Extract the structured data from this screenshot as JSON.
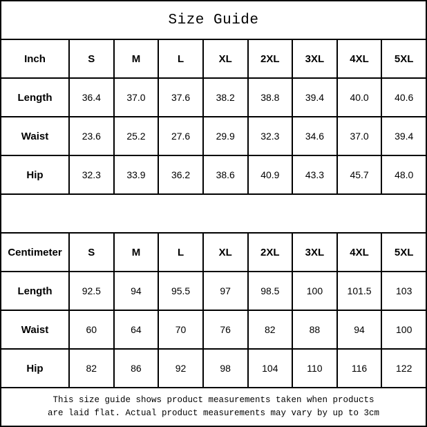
{
  "title": "Size Guide",
  "colors": {
    "border": "#000000",
    "text": "#000000",
    "background": "#ffffff"
  },
  "inch_table": {
    "header": [
      "Inch",
      "S",
      "M",
      "L",
      "XL",
      "2XL",
      "3XL",
      "4XL",
      "5XL"
    ],
    "rows": [
      {
        "label": "Length",
        "values": [
          "36.4",
          "37.0",
          "37.6",
          "38.2",
          "38.8",
          "39.4",
          "40.0",
          "40.6"
        ]
      },
      {
        "label": "Waist",
        "values": [
          "23.6",
          "25.2",
          "27.6",
          "29.9",
          "32.3",
          "34.6",
          "37.0",
          "39.4"
        ]
      },
      {
        "label": "Hip",
        "values": [
          "32.3",
          "33.9",
          "36.2",
          "38.6",
          "40.9",
          "43.3",
          "45.7",
          "48.0"
        ]
      }
    ]
  },
  "cm_table": {
    "header": [
      "Centimeter",
      "S",
      "M",
      "L",
      "XL",
      "2XL",
      "3XL",
      "4XL",
      "5XL"
    ],
    "rows": [
      {
        "label": "Length",
        "values": [
          "92.5",
          "94",
          "95.5",
          "97",
          "98.5",
          "100",
          "101.5",
          "103"
        ]
      },
      {
        "label": "Waist",
        "values": [
          "60",
          "64",
          "70",
          "76",
          "82",
          "88",
          "94",
          "100"
        ]
      },
      {
        "label": "Hip",
        "values": [
          "82",
          "86",
          "92",
          "98",
          "104",
          "110",
          "116",
          "122"
        ]
      }
    ]
  },
  "footer": {
    "line1": "This size guide shows product measurements taken when products",
    "line2": "are laid flat. Actual product measurements may vary by up to 3cm"
  }
}
